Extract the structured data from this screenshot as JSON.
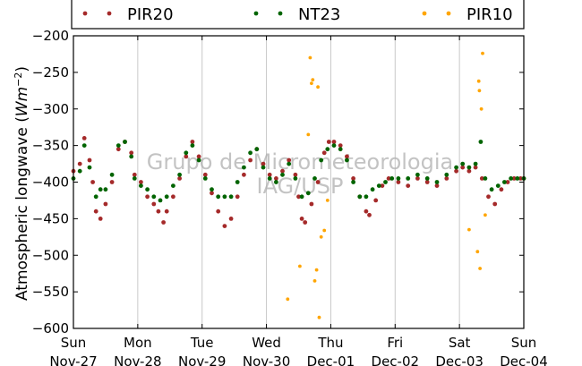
{
  "chart_data": {
    "type": "scatter",
    "title": "",
    "ylabel": "Atmospheric longwave (Wm^-2)",
    "ylabel_text": "Atmospheric longwave (",
    "ylabel_unit": "Wm",
    "ylabel_exp": "−2",
    "ylabel_close": ")",
    "ylim": [
      -600,
      -200
    ],
    "yticks": [
      -200,
      -250,
      -300,
      -350,
      -400,
      -450,
      -500,
      -550,
      -600
    ],
    "ytick_labels": [
      "−200",
      "−250",
      "−300",
      "−350",
      "−400",
      "−450",
      "−500",
      "−550",
      "−600"
    ],
    "xlim_days": [
      0,
      7
    ],
    "xticks": [
      {
        "day": "Sun",
        "date": "Nov-27"
      },
      {
        "day": "Mon",
        "date": "Nov-28"
      },
      {
        "day": "Tue",
        "date": "Nov-29"
      },
      {
        "day": "Wed",
        "date": "Nov-30"
      },
      {
        "day": "Thu",
        "date": "Dec-01"
      },
      {
        "day": "Fri",
        "date": "Dec-02"
      },
      {
        "day": "Sat",
        "date": "Dec-03"
      },
      {
        "day": "Sun",
        "date": "Dec-04"
      }
    ],
    "grid": "vertical",
    "legend_position": "top",
    "watermark": [
      "Grupo de Micrometeorologia",
      "IAG/USP"
    ],
    "series": [
      {
        "name": "PIR20",
        "color": "#a52a2a",
        "points": [
          [
            0.0,
            -385
          ],
          [
            0.1,
            -375
          ],
          [
            0.17,
            -340
          ],
          [
            0.25,
            -370
          ],
          [
            0.3,
            -400
          ],
          [
            0.35,
            -440
          ],
          [
            0.42,
            -450
          ],
          [
            0.5,
            -430
          ],
          [
            0.6,
            -400
          ],
          [
            0.7,
            -355
          ],
          [
            0.8,
            -345
          ],
          [
            0.9,
            -360
          ],
          [
            0.95,
            -390
          ],
          [
            1.05,
            -400
          ],
          [
            1.15,
            -420
          ],
          [
            1.25,
            -430
          ],
          [
            1.32,
            -440
          ],
          [
            1.4,
            -455
          ],
          [
            1.45,
            -440
          ],
          [
            1.55,
            -420
          ],
          [
            1.65,
            -395
          ],
          [
            1.75,
            -365
          ],
          [
            1.85,
            -345
          ],
          [
            1.95,
            -365
          ],
          [
            2.05,
            -390
          ],
          [
            2.15,
            -415
          ],
          [
            2.25,
            -440
          ],
          [
            2.35,
            -460
          ],
          [
            2.45,
            -450
          ],
          [
            2.55,
            -420
          ],
          [
            2.65,
            -390
          ],
          [
            2.75,
            -370
          ],
          [
            2.85,
            -355
          ],
          [
            2.95,
            -375
          ],
          [
            3.05,
            -390
          ],
          [
            3.15,
            -395
          ],
          [
            3.25,
            -385
          ],
          [
            3.35,
            -370
          ],
          [
            3.45,
            -390
          ],
          [
            3.5,
            -420
          ],
          [
            3.55,
            -450
          ],
          [
            3.6,
            -455
          ],
          [
            3.7,
            -430
          ],
          [
            3.8,
            -400
          ],
          [
            3.9,
            -360
          ],
          [
            3.97,
            -345
          ],
          [
            4.05,
            -345
          ],
          [
            4.15,
            -350
          ],
          [
            4.25,
            -365
          ],
          [
            4.35,
            -395
          ],
          [
            4.45,
            -420
          ],
          [
            4.55,
            -440
          ],
          [
            4.6,
            -445
          ],
          [
            4.7,
            -425
          ],
          [
            4.8,
            -405
          ],
          [
            4.9,
            -395
          ],
          [
            5.05,
            -400
          ],
          [
            5.2,
            -405
          ],
          [
            5.35,
            -395
          ],
          [
            5.5,
            -400
          ],
          [
            5.65,
            -405
          ],
          [
            5.8,
            -395
          ],
          [
            5.95,
            -385
          ],
          [
            6.05,
            -380
          ],
          [
            6.15,
            -385
          ],
          [
            6.25,
            -380
          ],
          [
            6.35,
            -395
          ],
          [
            6.45,
            -420
          ],
          [
            6.55,
            -430
          ],
          [
            6.65,
            -410
          ],
          [
            6.75,
            -400
          ],
          [
            6.85,
            -395
          ],
          [
            6.95,
            -395
          ],
          [
            7.0,
            -395
          ]
        ]
      },
      {
        "name": "NT23",
        "color": "#006400",
        "points": [
          [
            0.0,
            -395
          ],
          [
            0.1,
            -385
          ],
          [
            0.17,
            -350
          ],
          [
            0.25,
            -380
          ],
          [
            0.35,
            -420
          ],
          [
            0.42,
            -410
          ],
          [
            0.5,
            -410
          ],
          [
            0.6,
            -390
          ],
          [
            0.7,
            -350
          ],
          [
            0.8,
            -345
          ],
          [
            0.9,
            -365
          ],
          [
            0.95,
            -395
          ],
          [
            1.05,
            -405
          ],
          [
            1.15,
            -410
          ],
          [
            1.25,
            -420
          ],
          [
            1.35,
            -425
          ],
          [
            1.45,
            -420
          ],
          [
            1.55,
            -405
          ],
          [
            1.65,
            -390
          ],
          [
            1.75,
            -360
          ],
          [
            1.85,
            -350
          ],
          [
            1.95,
            -370
          ],
          [
            2.05,
            -395
          ],
          [
            2.15,
            -410
          ],
          [
            2.25,
            -420
          ],
          [
            2.35,
            -420
          ],
          [
            2.45,
            -420
          ],
          [
            2.55,
            -400
          ],
          [
            2.65,
            -380
          ],
          [
            2.75,
            -360
          ],
          [
            2.85,
            -355
          ],
          [
            2.95,
            -380
          ],
          [
            3.05,
            -395
          ],
          [
            3.15,
            -400
          ],
          [
            3.25,
            -390
          ],
          [
            3.35,
            -375
          ],
          [
            3.45,
            -395
          ],
          [
            3.55,
            -420
          ],
          [
            3.65,
            -415
          ],
          [
            3.75,
            -395
          ],
          [
            3.85,
            -370
          ],
          [
            3.95,
            -355
          ],
          [
            4.05,
            -350
          ],
          [
            4.15,
            -355
          ],
          [
            4.25,
            -370
          ],
          [
            4.35,
            -400
          ],
          [
            4.45,
            -420
          ],
          [
            4.55,
            -420
          ],
          [
            4.65,
            -410
          ],
          [
            4.75,
            -405
          ],
          [
            4.85,
            -400
          ],
          [
            4.95,
            -395
          ],
          [
            5.05,
            -395
          ],
          [
            5.2,
            -395
          ],
          [
            5.35,
            -390
          ],
          [
            5.5,
            -395
          ],
          [
            5.65,
            -400
          ],
          [
            5.8,
            -390
          ],
          [
            5.95,
            -380
          ],
          [
            6.05,
            -375
          ],
          [
            6.15,
            -380
          ],
          [
            6.25,
            -375
          ],
          [
            6.33,
            -345
          ],
          [
            6.4,
            -395
          ],
          [
            6.5,
            -410
          ],
          [
            6.6,
            -405
          ],
          [
            6.7,
            -400
          ],
          [
            6.8,
            -395
          ],
          [
            6.9,
            -395
          ],
          [
            7.0,
            -395
          ]
        ]
      },
      {
        "name": "PIR10",
        "color": "#ffa500",
        "points": [
          [
            3.33,
            -560
          ],
          [
            3.52,
            -515
          ],
          [
            3.65,
            -335
          ],
          [
            3.68,
            -230
          ],
          [
            3.7,
            -265
          ],
          [
            3.72,
            -260
          ],
          [
            3.75,
            -535
          ],
          [
            3.78,
            -520
          ],
          [
            3.8,
            -270
          ],
          [
            3.82,
            -585
          ],
          [
            3.85,
            -475
          ],
          [
            3.9,
            -466
          ],
          [
            3.95,
            -425
          ],
          [
            6.15,
            -465
          ],
          [
            6.28,
            -495
          ],
          [
            6.3,
            -262
          ],
          [
            6.31,
            -275
          ],
          [
            6.32,
            -518
          ],
          [
            6.34,
            -300
          ],
          [
            6.36,
            -224
          ],
          [
            6.4,
            -445
          ]
        ]
      }
    ]
  }
}
